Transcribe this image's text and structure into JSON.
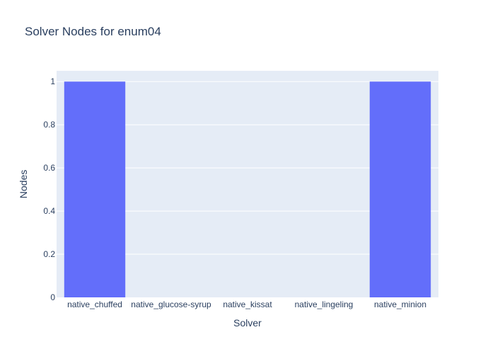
{
  "chart_data": {
    "type": "bar",
    "title": "Solver Nodes for enum04",
    "xlabel": "Solver",
    "ylabel": "Nodes",
    "categories": [
      "native_chuffed",
      "native_glucose-syrup",
      "native_kissat",
      "native_lingeling",
      "native_minion"
    ],
    "values": [
      1,
      0,
      0,
      0,
      1
    ],
    "ylim": [
      0,
      1.05
    ],
    "yticks": [
      0,
      0.2,
      0.4,
      0.6,
      0.8,
      1
    ],
    "ytick_labels": [
      "0",
      "0.2",
      "0.4",
      "0.6",
      "0.8",
      "1"
    ],
    "grid": true,
    "legend": "none",
    "colors": {
      "bar": "#636efa",
      "plot_background": "#e5ecf6",
      "grid": "#ffffff",
      "text": "#2a3f5f"
    }
  }
}
